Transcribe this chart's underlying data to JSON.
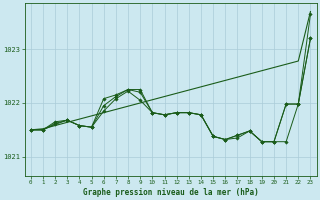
{
  "title": "Graphe pression niveau de la mer (hPa)",
  "xlabel_ticks": [
    0,
    1,
    2,
    3,
    4,
    5,
    6,
    7,
    8,
    9,
    10,
    11,
    12,
    13,
    14,
    15,
    16,
    17,
    18,
    19,
    20,
    21,
    22,
    23
  ],
  "yticks": [
    1021,
    1022,
    1023
  ],
  "ylim": [
    1020.65,
    1023.85
  ],
  "xlim": [
    -0.5,
    23.5
  ],
  "bg_color": "#cce8f0",
  "grid_color": "#aaccd8",
  "line_color": "#1a5c1a",
  "text_color": "#1a5c1a",
  "line_straight": [
    1021.5,
    1021.52,
    1021.58,
    1021.64,
    1021.7,
    1021.76,
    1021.82,
    1021.88,
    1021.94,
    1022.0,
    1022.06,
    1022.12,
    1022.18,
    1022.24,
    1022.3,
    1022.36,
    1022.42,
    1022.48,
    1022.54,
    1022.6,
    1022.66,
    1022.72,
    1022.78,
    1023.7
  ],
  "line_jagged1": [
    1021.5,
    1021.5,
    1021.6,
    1021.68,
    1021.58,
    1021.55,
    1021.95,
    1022.12,
    1022.25,
    1022.2,
    1021.82,
    1021.78,
    1021.82,
    1021.82,
    1021.78,
    1021.38,
    1021.32,
    1021.35,
    1021.48,
    1021.28,
    1021.28,
    1021.28,
    1021.98,
    1023.2
  ],
  "line_jagged2": [
    1021.5,
    1021.5,
    1021.62,
    1021.68,
    1021.58,
    1021.55,
    1021.85,
    1022.08,
    1022.22,
    1022.05,
    1021.82,
    1021.78,
    1021.82,
    1021.82,
    1021.78,
    1021.38,
    1021.32,
    1021.4,
    1021.48,
    1021.28,
    1021.28,
    1021.98,
    1021.98,
    1023.2
  ],
  "line_jagged3": [
    1021.5,
    1021.5,
    1021.65,
    1021.68,
    1021.58,
    1021.55,
    1022.08,
    1022.15,
    1022.25,
    1022.25,
    1021.82,
    1021.78,
    1021.82,
    1021.82,
    1021.78,
    1021.38,
    1021.32,
    1021.4,
    1021.48,
    1021.28,
    1021.28,
    1021.98,
    1021.98,
    1023.65
  ]
}
